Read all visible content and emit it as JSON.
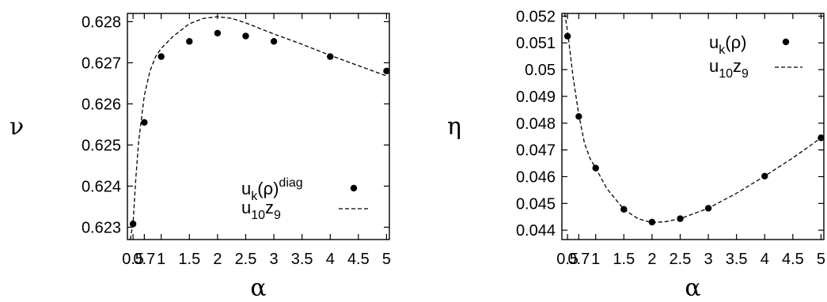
{
  "chart_data": [
    {
      "type": "scatter",
      "xlabel": "α",
      "ylabel": "ν",
      "xlim": [
        0.4,
        5.05
      ],
      "ylim": [
        0.6227,
        0.6282
      ],
      "x_ticks": [
        0.5,
        0.7,
        1,
        1.5,
        2,
        2.5,
        3,
        3.5,
        4,
        4.5,
        5
      ],
      "x_tick_labels": [
        "0.5",
        "0.7",
        "1",
        "1.5",
        "2",
        "2.5",
        "3",
        "3.5",
        "4",
        "4.5",
        "5"
      ],
      "y_ticks": [
        0.623,
        0.624,
        0.625,
        0.626,
        0.627,
        0.628
      ],
      "y_tick_labels": [
        "0.623",
        "0.624",
        "0.625",
        "0.626",
        "0.627",
        "0.628"
      ],
      "legend_position": "bottom-right",
      "grid": false,
      "series": [
        {
          "name": "u_k(ρ)^diag",
          "legend": {
            "base": "u",
            "sub": "k",
            "mid": "(ρ)",
            "sup": "diag"
          },
          "style": "points",
          "x": [
            0.5,
            0.7,
            1,
            1.5,
            2,
            2.5,
            3,
            4,
            5
          ],
          "y": [
            0.62308,
            0.62555,
            0.62715,
            0.62752,
            0.62772,
            0.62765,
            0.62752,
            0.62715,
            0.6268
          ]
        },
        {
          "name": "u_10z_9",
          "legend": {
            "base": "u",
            "sub": "10",
            "mid": "z",
            "sub2": "9"
          },
          "style": "dashed",
          "x": [
            0.45,
            0.5,
            0.55,
            0.6,
            0.7,
            0.8,
            0.9,
            1,
            1.2,
            1.5,
            1.75,
            2,
            2.25,
            2.5,
            3,
            3.5,
            4,
            4.5,
            5
          ],
          "y": [
            0.6227,
            0.6231,
            0.6242,
            0.6251,
            0.6262,
            0.6268,
            0.62715,
            0.62735,
            0.62763,
            0.62795,
            0.62808,
            0.62812,
            0.62808,
            0.62797,
            0.6277,
            0.62745,
            0.62718,
            0.62693,
            0.62668
          ]
        }
      ]
    },
    {
      "type": "scatter",
      "xlabel": "α",
      "ylabel": "η",
      "xlim": [
        0.4,
        5.05
      ],
      "ylim": [
        0.04365,
        0.0521
      ],
      "x_ticks": [
        0.5,
        0.7,
        1,
        1.5,
        2,
        2.5,
        3,
        3.5,
        4,
        4.5,
        5
      ],
      "x_tick_labels": [
        "0.5",
        "0.7",
        "1",
        "1.5",
        "2",
        "2.5",
        "3",
        "3.5",
        "4",
        "4.5",
        "5"
      ],
      "y_ticks": [
        0.044,
        0.045,
        0.046,
        0.047,
        0.048,
        0.049,
        0.05,
        0.051,
        0.052
      ],
      "y_tick_labels": [
        "0.044",
        "0.045",
        "0.046",
        "0.047",
        "0.048",
        "0.049",
        "0.05",
        "0.051",
        "0.052"
      ],
      "legend_position": "top-right",
      "grid": false,
      "series": [
        {
          "name": "u_k(ρ)",
          "legend": {
            "base": "u",
            "sub": "k",
            "mid": "(ρ)",
            "sup": ""
          },
          "style": "points",
          "x": [
            0.5,
            0.7,
            1,
            1.5,
            2,
            2.5,
            3,
            4,
            5
          ],
          "y": [
            0.05125,
            0.04825,
            0.04632,
            0.04478,
            0.0443,
            0.04443,
            0.04482,
            0.04602,
            0.04745
          ]
        },
        {
          "name": "u_10z_9",
          "legend": {
            "base": "u",
            "sub": "10",
            "mid": "z",
            "sub2": "9"
          },
          "style": "dashed",
          "x": [
            0.45,
            0.5,
            0.6,
            0.7,
            0.8,
            0.9,
            1,
            1.2,
            1.5,
            1.75,
            2,
            2.25,
            2.5,
            3,
            3.5,
            4,
            4.5,
            5,
            5.05
          ],
          "y": [
            0.0521,
            0.05145,
            0.0497,
            0.04832,
            0.04726,
            0.04668,
            0.04632,
            0.04555,
            0.04478,
            0.04443,
            0.04428,
            0.04432,
            0.04443,
            0.04482,
            0.04538,
            0.04602,
            0.0467,
            0.04745,
            0.0476
          ]
        }
      ]
    }
  ]
}
